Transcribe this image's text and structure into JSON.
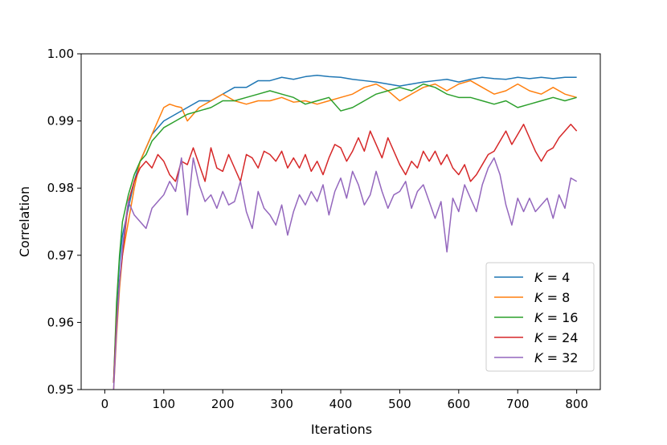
{
  "chart_data": {
    "type": "line",
    "title": "",
    "xlabel": "Iterations",
    "ylabel": "Correlation",
    "xlim": [
      -40,
      840
    ],
    "ylim": [
      0.95,
      1.0
    ],
    "xticks": [
      0,
      100,
      200,
      300,
      400,
      500,
      600,
      700,
      800
    ],
    "xtick_labels": [
      "0",
      "100",
      "200",
      "300",
      "400",
      "500",
      "600",
      "700",
      "800"
    ],
    "yticks": [
      0.95,
      0.96,
      0.97,
      0.98,
      0.99,
      1.0
    ],
    "ytick_labels": [
      "0.95",
      "0.96",
      "0.97",
      "0.98",
      "0.99",
      "1.00"
    ],
    "grid": false,
    "legend_position": "lower-right",
    "series": [
      {
        "name": "K = 4",
        "color": "#1f77b4",
        "x": [
          15,
          20,
          25,
          30,
          40,
          50,
          60,
          70,
          80,
          90,
          100,
          120,
          140,
          160,
          180,
          200,
          220,
          240,
          260,
          280,
          300,
          320,
          340,
          360,
          380,
          400,
          420,
          440,
          460,
          480,
          500,
          520,
          540,
          560,
          580,
          600,
          620,
          640,
          660,
          680,
          700,
          720,
          740,
          760,
          780,
          800
        ],
        "y": [
          0.951,
          0.962,
          0.969,
          0.973,
          0.977,
          0.981,
          0.984,
          0.986,
          0.988,
          0.989,
          0.99,
          0.991,
          0.992,
          0.993,
          0.993,
          0.994,
          0.995,
          0.995,
          0.996,
          0.996,
          0.9965,
          0.9962,
          0.9966,
          0.9968,
          0.9966,
          0.9965,
          0.9962,
          0.996,
          0.9958,
          0.9955,
          0.9952,
          0.9955,
          0.9958,
          0.996,
          0.9962,
          0.9958,
          0.9962,
          0.9965,
          0.9963,
          0.9962,
          0.9965,
          0.9963,
          0.9965,
          0.9963,
          0.9965,
          0.9965
        ]
      },
      {
        "name": "K = 8",
        "color": "#ff7f0e",
        "x": [
          15,
          20,
          25,
          30,
          40,
          50,
          60,
          70,
          80,
          90,
          100,
          110,
          120,
          130,
          140,
          160,
          180,
          200,
          220,
          240,
          260,
          280,
          300,
          320,
          340,
          360,
          380,
          400,
          420,
          440,
          460,
          480,
          500,
          520,
          540,
          560,
          580,
          600,
          620,
          640,
          660,
          680,
          700,
          720,
          740,
          760,
          780,
          800
        ],
        "y": [
          0.95,
          0.958,
          0.965,
          0.97,
          0.975,
          0.98,
          0.984,
          0.986,
          0.988,
          0.99,
          0.992,
          0.9925,
          0.9922,
          0.992,
          0.99,
          0.992,
          0.993,
          0.994,
          0.993,
          0.9925,
          0.993,
          0.993,
          0.9935,
          0.9928,
          0.993,
          0.9925,
          0.993,
          0.9935,
          0.994,
          0.995,
          0.9955,
          0.9945,
          0.993,
          0.994,
          0.995,
          0.9955,
          0.9945,
          0.9955,
          0.996,
          0.995,
          0.994,
          0.9945,
          0.9955,
          0.9945,
          0.994,
          0.995,
          0.994,
          0.9935
        ]
      },
      {
        "name": "K = 16",
        "color": "#2ca02c",
        "x": [
          15,
          20,
          25,
          30,
          40,
          50,
          60,
          70,
          80,
          90,
          100,
          120,
          140,
          160,
          180,
          200,
          220,
          240,
          260,
          280,
          300,
          320,
          340,
          360,
          380,
          400,
          420,
          440,
          460,
          480,
          500,
          520,
          540,
          560,
          580,
          600,
          620,
          640,
          660,
          680,
          700,
          720,
          740,
          760,
          780,
          800
        ],
        "y": [
          0.951,
          0.963,
          0.97,
          0.975,
          0.979,
          0.982,
          0.984,
          0.985,
          0.987,
          0.988,
          0.989,
          0.99,
          0.991,
          0.9915,
          0.992,
          0.993,
          0.993,
          0.9935,
          0.994,
          0.9945,
          0.994,
          0.9935,
          0.9925,
          0.993,
          0.9935,
          0.9915,
          0.992,
          0.993,
          0.994,
          0.9945,
          0.995,
          0.9945,
          0.9955,
          0.995,
          0.994,
          0.9935,
          0.9935,
          0.993,
          0.9925,
          0.993,
          0.992,
          0.9925,
          0.993,
          0.9935,
          0.993,
          0.9935
        ]
      },
      {
        "name": "K = 24",
        "color": "#d62728",
        "x": [
          15,
          20,
          25,
          30,
          35,
          40,
          50,
          60,
          70,
          80,
          90,
          100,
          110,
          120,
          130,
          140,
          150,
          160,
          170,
          180,
          190,
          200,
          210,
          220,
          230,
          240,
          250,
          260,
          270,
          280,
          290,
          300,
          310,
          320,
          330,
          340,
          350,
          360,
          370,
          380,
          390,
          400,
          410,
          420,
          430,
          440,
          450,
          460,
          470,
          480,
          490,
          500,
          510,
          520,
          530,
          540,
          550,
          560,
          570,
          580,
          590,
          600,
          610,
          620,
          630,
          640,
          650,
          660,
          670,
          680,
          690,
          700,
          710,
          720,
          730,
          740,
          750,
          760,
          770,
          780,
          790,
          800
        ],
        "y": [
          0.951,
          0.96,
          0.966,
          0.97,
          0.974,
          0.978,
          0.981,
          0.983,
          0.984,
          0.983,
          0.985,
          0.984,
          0.982,
          0.981,
          0.984,
          0.9835,
          0.986,
          0.9835,
          0.981,
          0.986,
          0.983,
          0.9825,
          0.985,
          0.983,
          0.981,
          0.985,
          0.9845,
          0.983,
          0.9855,
          0.985,
          0.984,
          0.9855,
          0.983,
          0.9845,
          0.983,
          0.985,
          0.9825,
          0.984,
          0.982,
          0.9845,
          0.9865,
          0.986,
          0.984,
          0.9855,
          0.9875,
          0.9855,
          0.9885,
          0.9865,
          0.9845,
          0.9875,
          0.9855,
          0.9835,
          0.982,
          0.984,
          0.983,
          0.9855,
          0.984,
          0.9855,
          0.9835,
          0.985,
          0.983,
          0.982,
          0.9835,
          0.981,
          0.982,
          0.9835,
          0.985,
          0.9855,
          0.987,
          0.9885,
          0.9865,
          0.988,
          0.9895,
          0.9875,
          0.9855,
          0.984,
          0.9855,
          0.986,
          0.9875,
          0.9885,
          0.9895,
          0.9885
        ]
      },
      {
        "name": "K = 32",
        "color": "#9467bd",
        "x": [
          15,
          20,
          25,
          30,
          35,
          40,
          50,
          60,
          70,
          80,
          90,
          100,
          110,
          120,
          130,
          140,
          150,
          160,
          170,
          180,
          190,
          200,
          210,
          220,
          230,
          240,
          250,
          260,
          270,
          280,
          290,
          300,
          310,
          320,
          330,
          340,
          350,
          360,
          370,
          380,
          390,
          400,
          410,
          420,
          430,
          440,
          450,
          460,
          470,
          480,
          490,
          500,
          510,
          520,
          530,
          540,
          550,
          560,
          570,
          580,
          590,
          600,
          610,
          620,
          630,
          640,
          650,
          660,
          670,
          680,
          690,
          700,
          710,
          720,
          730,
          740,
          750,
          760,
          770,
          780,
          790,
          800
        ],
        "y": [
          0.95,
          0.959,
          0.966,
          0.971,
          0.975,
          0.978,
          0.976,
          0.975,
          0.974,
          0.977,
          0.978,
          0.979,
          0.981,
          0.9795,
          0.9845,
          0.976,
          0.9845,
          0.9805,
          0.978,
          0.979,
          0.977,
          0.9795,
          0.9775,
          0.978,
          0.981,
          0.9765,
          0.974,
          0.9795,
          0.977,
          0.976,
          0.9745,
          0.9775,
          0.973,
          0.9765,
          0.979,
          0.9775,
          0.9795,
          0.978,
          0.9805,
          0.976,
          0.9795,
          0.9815,
          0.9785,
          0.9825,
          0.9805,
          0.9775,
          0.979,
          0.9825,
          0.9795,
          0.977,
          0.979,
          0.9795,
          0.981,
          0.977,
          0.9795,
          0.9805,
          0.978,
          0.9755,
          0.978,
          0.9705,
          0.9785,
          0.9765,
          0.9805,
          0.9785,
          0.9765,
          0.9805,
          0.983,
          0.9845,
          0.982,
          0.9775,
          0.9745,
          0.9785,
          0.9765,
          0.9785,
          0.9765,
          0.9775,
          0.9785,
          0.9755,
          0.979,
          0.977,
          0.9815,
          0.981
        ]
      }
    ]
  }
}
